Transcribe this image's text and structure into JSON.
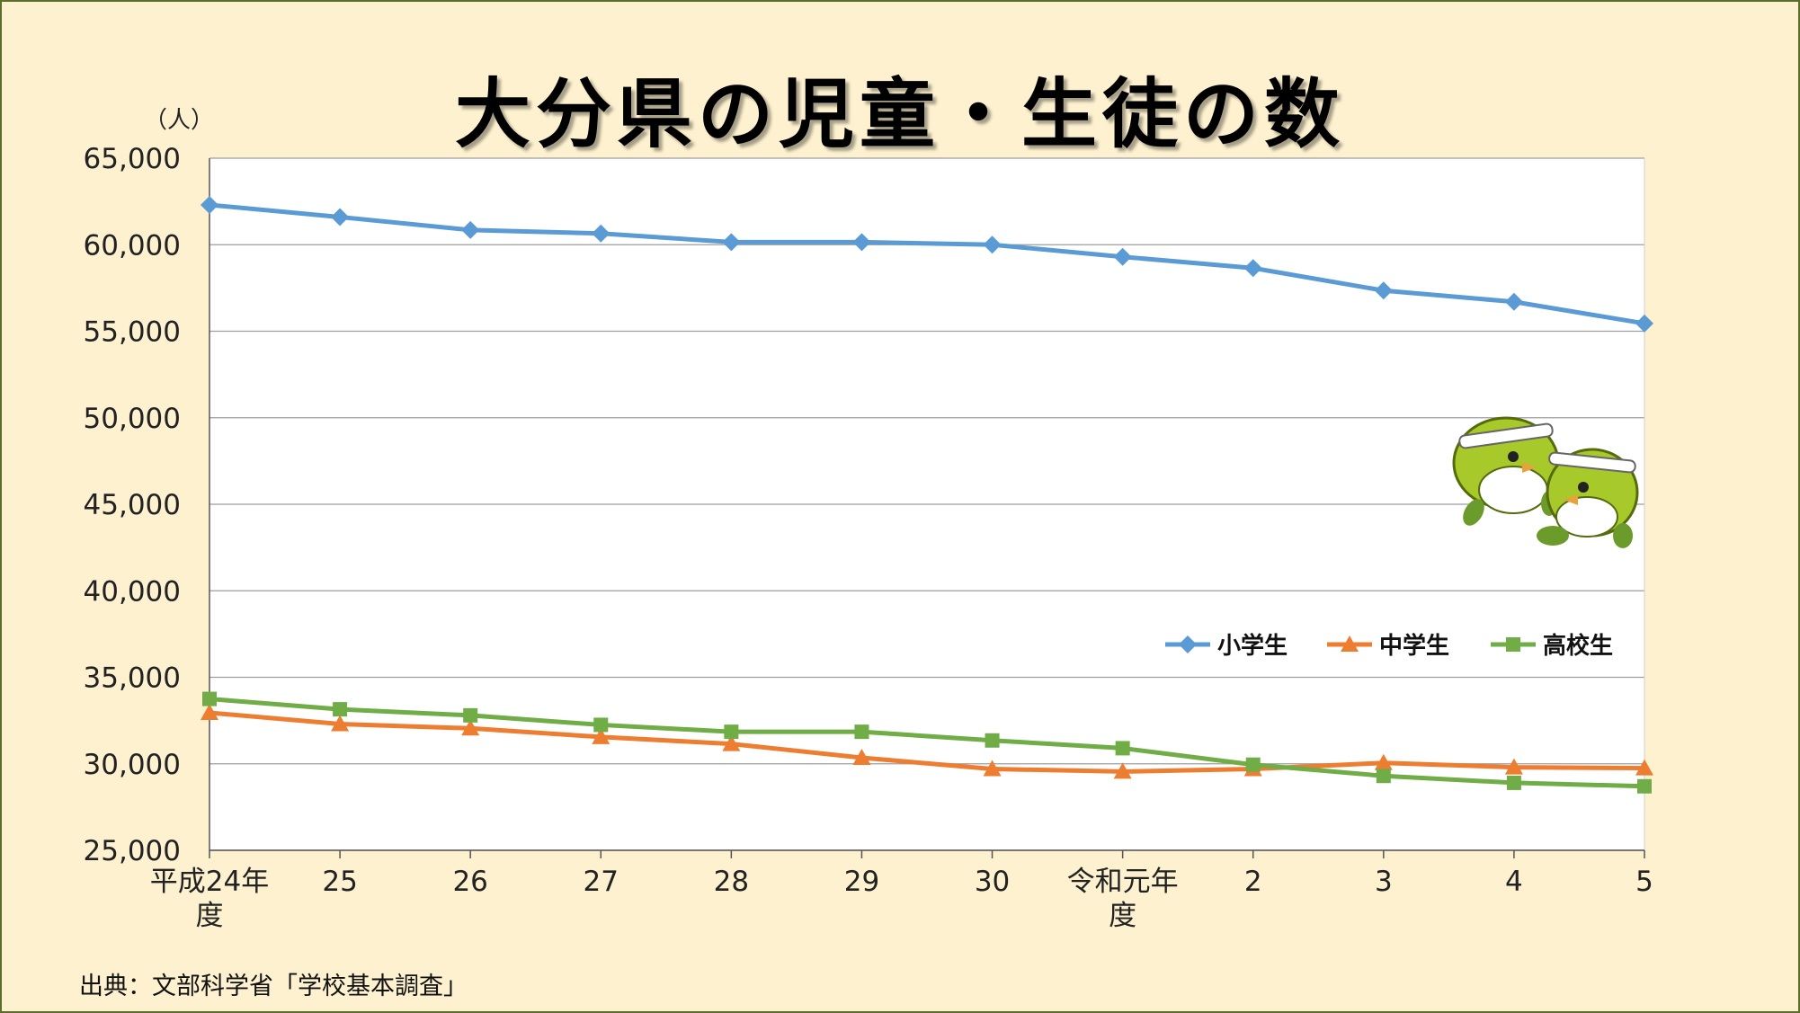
{
  "title": "大分県の児童・生徒の数",
  "unit_label": "（人）",
  "source": "出典：文部科学省「学校基本調査」",
  "mascot_icon": "mejiron-mascot-pair",
  "chart_data": {
    "type": "line",
    "categories": [
      "平成24年\n度",
      "25",
      "26",
      "27",
      "28",
      "29",
      "30",
      "令和元年\n度",
      "2",
      "3",
      "4",
      "5"
    ],
    "ylim": [
      25000,
      65000
    ],
    "yticks": [
      25000,
      30000,
      35000,
      40000,
      45000,
      50000,
      55000,
      60000,
      65000
    ],
    "ytick_labels": [
      "25,000",
      "30,000",
      "35,000",
      "40,000",
      "45,000",
      "50,000",
      "55,000",
      "60,000",
      "65,000"
    ],
    "grid": true,
    "legend_position": "right, below mascot",
    "series": [
      {
        "name": "小学生",
        "color": "#5b9bd5",
        "marker": "diamond",
        "values": [
          62300,
          61600,
          60850,
          60650,
          60150,
          60150,
          60000,
          59300,
          58650,
          57350,
          56700,
          55450
        ]
      },
      {
        "name": "中学生",
        "color": "#ed7d31",
        "marker": "triangle",
        "values": [
          32950,
          32300,
          32050,
          31550,
          31150,
          30350,
          29700,
          29550,
          29700,
          30050,
          29800,
          29750
        ]
      },
      {
        "name": "高校生",
        "color": "#70ad47",
        "marker": "square",
        "values": [
          33750,
          33150,
          32800,
          32250,
          31850,
          31850,
          31350,
          30900,
          29950,
          29300,
          28900,
          28700
        ]
      }
    ]
  }
}
